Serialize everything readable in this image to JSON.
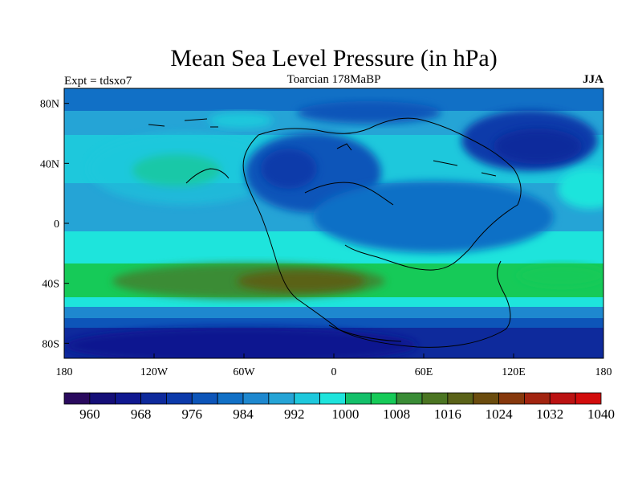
{
  "chart_data": {
    "type": "heatmap",
    "title": "Mean Sea Level Pressure (in hPa)",
    "left_string": "Expt = tdsxo7",
    "center_string": "Toarcian 178MaBP",
    "right_string": "JJA",
    "x_ticks": [
      {
        "value": -180,
        "label": "180"
      },
      {
        "value": -120,
        "label": "120W"
      },
      {
        "value": -60,
        "label": "60W"
      },
      {
        "value": 0,
        "label": "0"
      },
      {
        "value": 60,
        "label": "60E"
      },
      {
        "value": 120,
        "label": "120E"
      },
      {
        "value": 180,
        "label": "180"
      }
    ],
    "y_ticks": [
      {
        "value": 80,
        "label": "80N"
      },
      {
        "value": 40,
        "label": "40N"
      },
      {
        "value": 0,
        "label": "0"
      },
      {
        "value": -40,
        "label": "40S"
      },
      {
        "value": -80,
        "label": "80S"
      }
    ],
    "xlim": [
      -180,
      180
    ],
    "ylim": [
      -90,
      90
    ],
    "colorbar": {
      "colors": [
        "#2a0a5e",
        "#150f78",
        "#101890",
        "#0e2a9c",
        "#0c3aaa",
        "#0d55b9",
        "#1170c6",
        "#1e88cf",
        "#25a4d6",
        "#1ec8dc",
        "#1ee4dc",
        "#14c06a",
        "#16ca58",
        "#3a8c36",
        "#4b7522",
        "#5a6218",
        "#6b4c0e",
        "#86380c",
        "#a22410",
        "#bb1212",
        "#d20c0c"
      ],
      "labels": [
        {
          "value": 960,
          "label": "960"
        },
        {
          "value": 968,
          "label": "968"
        },
        {
          "value": 976,
          "label": "976"
        },
        {
          "value": 984,
          "label": "984"
        },
        {
          "value": 992,
          "label": "992"
        },
        {
          "value": 1000,
          "label": "1000"
        },
        {
          "value": 1008,
          "label": "1008"
        },
        {
          "value": 1016,
          "label": "1016"
        },
        {
          "value": 1024,
          "label": "1024"
        },
        {
          "value": 1032,
          "label": "1032"
        },
        {
          "value": 1040,
          "label": "1040"
        }
      ]
    }
  }
}
